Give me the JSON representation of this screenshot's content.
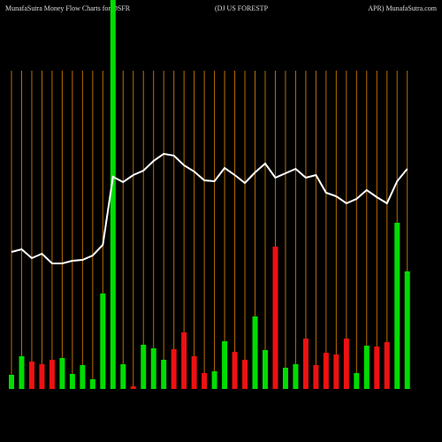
{
  "chart_data": {
    "type": "bar",
    "title_left": "MunafaSutra  Money Flow  Charts for DSFR",
    "title_center": "(DJ US FORESTP",
    "title_right": "APR) MunafaSutra.com",
    "grid": true,
    "grid_color": "#b86e00",
    "values": [
      16,
      37,
      31,
      28,
      33,
      35,
      17,
      27,
      11,
      108,
      460,
      28,
      3,
      50,
      46,
      33,
      45,
      64,
      37,
      18,
      20,
      54,
      42,
      33,
      82,
      44,
      161,
      24,
      28,
      57,
      27,
      41,
      39,
      57,
      18,
      49,
      48,
      53,
      188,
      133
    ],
    "colors": [
      "#00dd00",
      "#00dd00",
      "#ee1111",
      "#ee1111",
      "#ee1111",
      "#00dd00",
      "#00dd00",
      "#00dd00",
      "#00dd00",
      "#00dd00",
      "#00dd00",
      "#00dd00",
      "#ee1111",
      "#00dd00",
      "#00dd00",
      "#00dd00",
      "#ee1111",
      "#ee1111",
      "#ee1111",
      "#ee1111",
      "#00dd00",
      "#00dd00",
      "#ee1111",
      "#ee1111",
      "#00dd00",
      "#00dd00",
      "#ee1111",
      "#00dd00",
      "#00dd00",
      "#ee1111",
      "#ee1111",
      "#ee1111",
      "#ee1111",
      "#ee1111",
      "#00dd00",
      "#00dd00",
      "#ee1111",
      "#ee1111",
      "#00dd00",
      "#00dd00"
    ],
    "line": {
      "color": "#ffffff",
      "values": [
        155,
        158,
        148,
        153,
        142,
        142,
        145,
        146,
        151,
        163,
        240,
        234,
        242,
        247,
        258,
        266,
        264,
        253,
        246,
        236,
        235,
        250,
        242,
        233,
        245,
        255,
        239,
        244,
        249,
        239,
        242,
        222,
        218,
        210,
        215,
        225,
        217,
        210,
        235,
        249
      ]
    }
  }
}
